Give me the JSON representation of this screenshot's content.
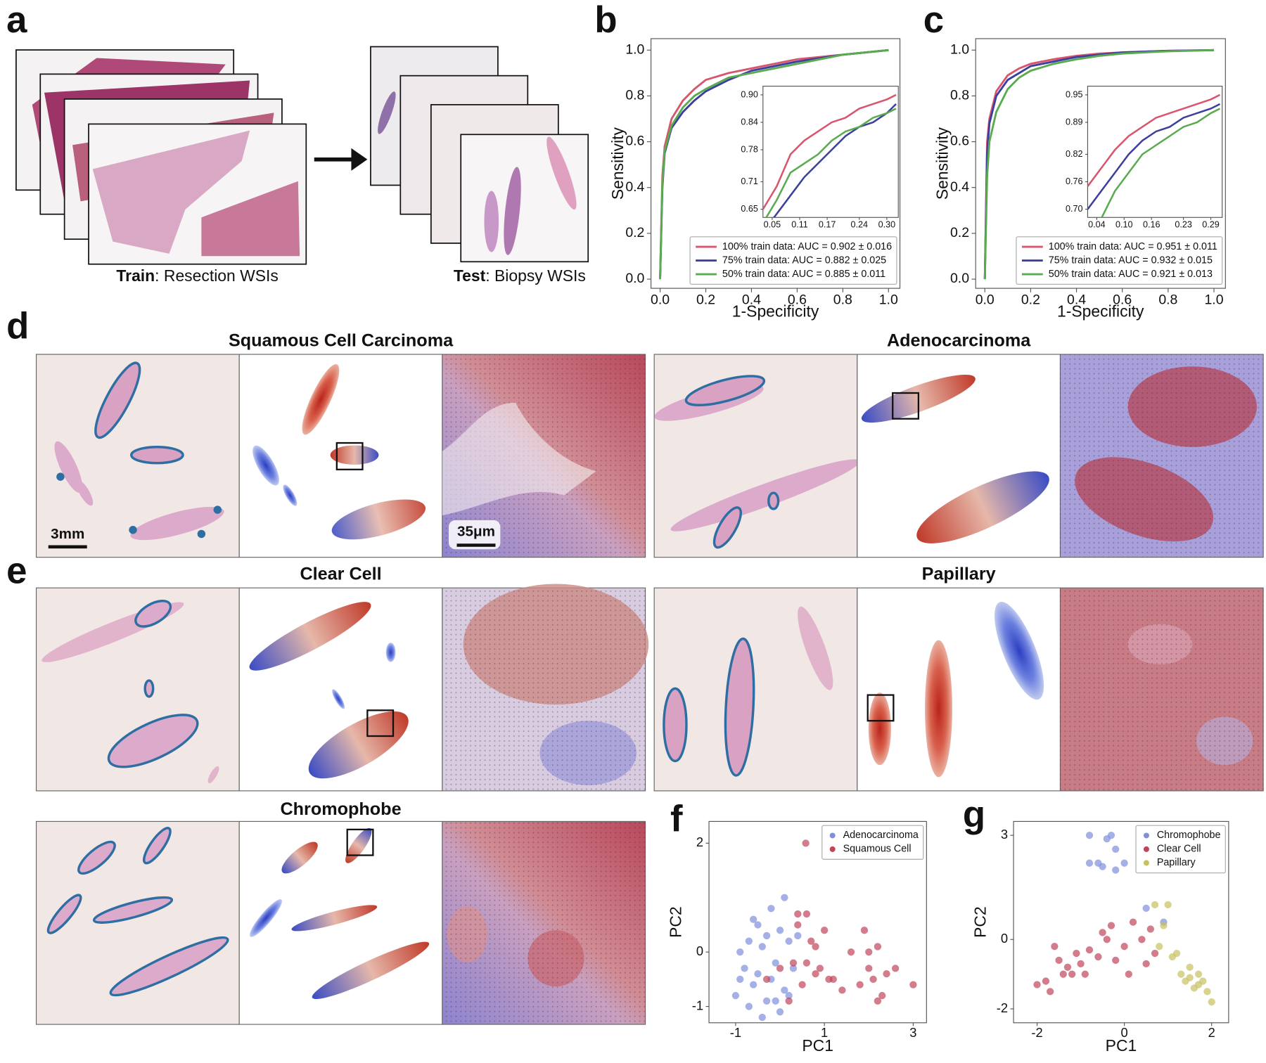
{
  "panels": {
    "a": {
      "letter": "a",
      "train": {
        "bold": "Train",
        "text": ": Resection WSIs"
      },
      "test": {
        "bold": "Test",
        "text": ": Biopsy WSIs"
      }
    },
    "d": {
      "letter": "d",
      "left_title": "Squamous Cell Carcinoma",
      "right_title": "Adenocarcinoma",
      "scale_bar_wsi": "3mm",
      "scale_bar_patch": "35μm"
    },
    "e": {
      "letter": "e",
      "titles": [
        "Clear Cell",
        "Papillary",
        "Chromophobe"
      ]
    }
  },
  "chart_data": [
    {
      "type": "roc",
      "panel": "b",
      "xlabel": "1-Specificity",
      "ylabel": "Sensitivity",
      "xlim": [
        -0.04,
        1.05
      ],
      "ylim": [
        -0.04,
        1.05
      ],
      "xticks": [
        {
          "value": 0,
          "label": "0.0"
        },
        0.2,
        0.4,
        0.6,
        0.8,
        {
          "value": 1,
          "label": "1.0"
        }
      ],
      "yticks": [
        {
          "value": 0,
          "label": "0.0"
        },
        0.2,
        0.4,
        0.6,
        0.8,
        {
          "value": 1,
          "label": "1.0"
        }
      ],
      "legend": "lower right",
      "x": [
        0,
        0.01,
        0.02,
        0.05,
        0.1,
        0.15,
        0.2,
        0.3,
        0.4,
        0.5,
        0.6,
        0.8,
        1.0
      ],
      "series": [
        {
          "name": "100% train data: AUC = 0.902 ± 0.016",
          "color": "#d7566e",
          "values": [
            0,
            0.45,
            0.58,
            0.7,
            0.78,
            0.83,
            0.87,
            0.9,
            0.92,
            0.94,
            0.96,
            0.98,
            1.0
          ]
        },
        {
          "name": "75% train data: AUC = 0.882 ± 0.025",
          "color": "#3d3f9e",
          "values": [
            0,
            0.4,
            0.55,
            0.66,
            0.73,
            0.78,
            0.82,
            0.87,
            0.91,
            0.93,
            0.95,
            0.98,
            1.0
          ]
        },
        {
          "name": "50% train data: AUC = 0.885 ± 0.011",
          "color": "#5aab4f",
          "values": [
            0,
            0.42,
            0.56,
            0.67,
            0.75,
            0.8,
            0.83,
            0.88,
            0.9,
            0.92,
            0.94,
            0.98,
            1.0
          ]
        }
      ],
      "inset": {
        "xlim": [
          0.03,
          0.325
        ],
        "ylim": [
          0.632,
          0.919
        ],
        "xticks": [
          0.05,
          0.11,
          0.17,
          0.24,
          {
            "value": 0.3,
            "label": "0.30"
          }
        ],
        "yticks": [
          0.65,
          0.71,
          0.78,
          0.84,
          {
            "value": 0.9,
            "label": "0.90"
          }
        ],
        "x": [
          0.03,
          0.06,
          0.09,
          0.12,
          0.15,
          0.18,
          0.21,
          0.24,
          0.27,
          0.3,
          0.32
        ],
        "series": [
          {
            "values": [
              0.65,
              0.7,
              0.77,
              0.8,
              0.82,
              0.84,
              0.85,
              0.87,
              0.88,
              0.89,
              0.9
            ]
          },
          {
            "values": [
              0.6,
              0.64,
              0.68,
              0.72,
              0.75,
              0.78,
              0.81,
              0.83,
              0.84,
              0.86,
              0.88
            ]
          },
          {
            "values": [
              0.62,
              0.67,
              0.73,
              0.75,
              0.77,
              0.8,
              0.82,
              0.83,
              0.85,
              0.86,
              0.87
            ]
          }
        ]
      }
    },
    {
      "type": "roc",
      "panel": "c",
      "xlabel": "1-Specificity",
      "ylabel": "Sensitivity",
      "xlim": [
        -0.04,
        1.05
      ],
      "ylim": [
        -0.04,
        1.05
      ],
      "xticks": [
        {
          "value": 0,
          "label": "0.0"
        },
        0.2,
        0.4,
        0.6,
        0.8,
        {
          "value": 1,
          "label": "1.0"
        }
      ],
      "yticks": [
        {
          "value": 0,
          "label": "0.0"
        },
        0.2,
        0.4,
        0.6,
        0.8,
        {
          "value": 1,
          "label": "1.0"
        }
      ],
      "legend": "lower right",
      "x": [
        0,
        0.01,
        0.02,
        0.05,
        0.1,
        0.15,
        0.2,
        0.3,
        0.4,
        0.5,
        0.6,
        0.8,
        1.0
      ],
      "series": [
        {
          "name": "100% train data: AUC = 0.951 ± 0.011",
          "color": "#d7566e",
          "values": [
            0,
            0.6,
            0.7,
            0.82,
            0.89,
            0.92,
            0.94,
            0.96,
            0.975,
            0.985,
            0.99,
            0.997,
            1.0
          ]
        },
        {
          "name": "75% train data: AUC = 0.932 ± 0.015",
          "color": "#3d3f9e",
          "values": [
            0,
            0.55,
            0.68,
            0.8,
            0.87,
            0.9,
            0.93,
            0.95,
            0.97,
            0.98,
            0.99,
            0.997,
            1.0
          ]
        },
        {
          "name": "50% train data: AUC = 0.921 ± 0.013",
          "color": "#5aab4f",
          "values": [
            0,
            0.45,
            0.6,
            0.73,
            0.83,
            0.88,
            0.91,
            0.94,
            0.96,
            0.975,
            0.985,
            0.995,
            1.0
          ]
        }
      ],
      "inset": {
        "xlim": [
          0.02,
          0.315
        ],
        "ylim": [
          0.682,
          0.969
        ],
        "xticks": [
          0.04,
          {
            "value": 0.1,
            "label": "0.10"
          },
          0.16,
          0.23,
          0.29
        ],
        "yticks": [
          {
            "value": 0.7,
            "label": "0.70"
          },
          0.76,
          0.82,
          0.89,
          0.95
        ],
        "x": [
          0.02,
          0.05,
          0.08,
          0.11,
          0.14,
          0.17,
          0.2,
          0.23,
          0.26,
          0.29,
          0.31
        ],
        "series": [
          {
            "values": [
              0.75,
              0.79,
              0.83,
              0.86,
              0.88,
              0.9,
              0.91,
              0.92,
              0.93,
              0.94,
              0.95
            ]
          },
          {
            "values": [
              0.7,
              0.74,
              0.78,
              0.82,
              0.85,
              0.87,
              0.88,
              0.9,
              0.91,
              0.92,
              0.93
            ]
          },
          {
            "values": [
              0.62,
              0.68,
              0.74,
              0.78,
              0.82,
              0.84,
              0.86,
              0.88,
              0.89,
              0.91,
              0.92
            ]
          }
        ]
      }
    },
    {
      "type": "scatter",
      "panel": "f",
      "xlabel": "PC1",
      "ylabel": "PC2",
      "xlim": [
        -1.6,
        3.3
      ],
      "ylim": [
        -1.3,
        2.4
      ],
      "xticks": [
        -1,
        1,
        3
      ],
      "yticks": [
        -1,
        0,
        2
      ],
      "legend": "upper right",
      "series": [
        {
          "name": "Adenocarcinoma",
          "color": "#7f8fdc",
          "x": [
            -1,
            -0.9,
            -0.8,
            -0.7,
            -0.6,
            -0.5,
            -0.4,
            -0.3,
            -0.2,
            -0.1,
            0,
            0.1,
            0.2,
            -0.7,
            -0.5,
            -0.3,
            -0.2,
            0,
            0.3,
            -0.6,
            -0.4,
            0.1,
            -0.9,
            0.2,
            0.4,
            -0.1
          ],
          "values": [
            -0.8,
            -0.5,
            -0.3,
            0.2,
            -0.6,
            0.5,
            0.1,
            -0.9,
            0.8,
            -0.2,
            0.4,
            -0.7,
            0.2,
            -1.0,
            -0.4,
            0.3,
            -0.5,
            -1.1,
            -0.3,
            0.6,
            -1.2,
            1.0,
            0.0,
            -0.8,
            0.3,
            -0.9
          ]
        },
        {
          "name": "Squamous Cell",
          "color": "#c0445a",
          "x": [
            0.4,
            0.6,
            0.58,
            0.3,
            0.5,
            0.7,
            0.8,
            0.9,
            1.0,
            1.2,
            1.4,
            1.6,
            1.8,
            1.9,
            2.0,
            2.1,
            2.2,
            2.3,
            2.4,
            2.6,
            3.0,
            0.2,
            0.6,
            0.8,
            1.1,
            2.0,
            2.2,
            0.4,
            -0.3,
            0.0
          ],
          "values": [
            0.7,
            0.7,
            2.0,
            -0.2,
            -0.6,
            0.2,
            -0.4,
            -0.3,
            0.4,
            -0.5,
            -0.7,
            0.0,
            -0.6,
            0.4,
            -0.3,
            -0.5,
            0.1,
            -0.8,
            -0.4,
            -0.3,
            -0.6,
            -0.9,
            -0.2,
            0.1,
            -0.5,
            0.0,
            -0.9,
            0.5,
            -0.5,
            -0.3
          ]
        }
      ]
    },
    {
      "type": "scatter",
      "panel": "g",
      "xlabel": "PC1",
      "ylabel": "PC2",
      "xlim": [
        -2.54,
        2.39
      ],
      "ylim": [
        -2.4,
        3.4
      ],
      "xticks": [
        -2,
        0,
        2
      ],
      "yticks": [
        -2,
        0,
        3
      ],
      "legend": "upper right",
      "series": [
        {
          "name": "Chromophobe",
          "color": "#7f8fdc",
          "x": [
            -0.8,
            -0.4,
            -0.3,
            -0.2,
            -0.6,
            -0.8,
            -0.5,
            -0.2,
            0.0,
            0.5,
            0.9
          ],
          "values": [
            3.0,
            2.9,
            3.0,
            2.6,
            2.2,
            2.2,
            2.1,
            2.0,
            2.2,
            0.9,
            0.5
          ]
        },
        {
          "name": "Clear Cell",
          "color": "#c0445a",
          "x": [
            -2.0,
            -1.8,
            -1.7,
            -1.5,
            -1.4,
            -1.2,
            -1.0,
            -0.8,
            -0.6,
            -0.4,
            -0.2,
            0.0,
            0.2,
            0.4,
            0.5,
            0.7,
            -1.6,
            -1.1,
            -0.5,
            0.1,
            -1.3,
            0.6,
            -0.9,
            -0.3
          ],
          "values": [
            -1.3,
            -1.2,
            -1.5,
            -0.6,
            -1.0,
            -1.0,
            -0.7,
            -0.3,
            -0.5,
            0.0,
            -0.6,
            -0.2,
            0.5,
            0.0,
            -0.7,
            -0.4,
            -0.2,
            -0.4,
            0.2,
            -1.0,
            -0.8,
            0.3,
            -1.0,
            0.4
          ]
        },
        {
          "name": "Papillary",
          "color": "#c8c060",
          "x": [
            0.7,
            1.0,
            0.9,
            1.1,
            1.2,
            1.3,
            1.4,
            1.5,
            1.6,
            1.7,
            1.8,
            1.9,
            1.7,
            2.0,
            1.5,
            0.8
          ],
          "values": [
            1.0,
            1.0,
            0.4,
            -0.5,
            -0.4,
            -1.0,
            -1.2,
            -1.1,
            -1.4,
            -1.3,
            -1.2,
            -1.5,
            -1.0,
            -1.8,
            -0.8,
            -0.2
          ]
        }
      ]
    }
  ]
}
